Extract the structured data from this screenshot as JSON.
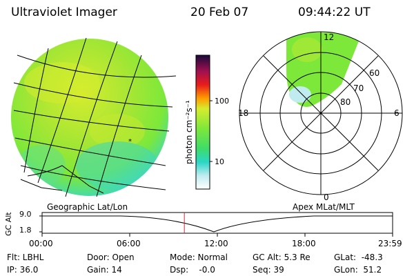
{
  "header": {
    "title": "Ultraviolet Imager",
    "date": "20 Feb 07",
    "time": "09:44:22 UT"
  },
  "colorbar": {
    "label": "photon cm⁻²s⁻¹",
    "ticks": [
      "100",
      "10"
    ],
    "scale": "log"
  },
  "polar": {
    "mlt_labels": {
      "top": "12",
      "left": "18",
      "right": "6",
      "bottom": "0"
    },
    "lat_labels": [
      "60",
      "70",
      "80"
    ]
  },
  "timeline": {
    "left_label": "Geographic Lat/Lon",
    "right_label": "Apex MLat/MLT",
    "y_label": "GC Alt",
    "y_ticks": [
      "9.0",
      "1.8"
    ],
    "x_ticks": [
      "00:00",
      "06:00",
      "12:00",
      "18:00",
      "23:59"
    ],
    "marker_time": "09:44",
    "marker_color": "#cc2a36"
  },
  "status": {
    "flt": "Flt: LBHL",
    "ip": "IP: 36.0",
    "door": "Door: Open",
    "gain": "Gain: 14",
    "mode": "Mode: Normal",
    "dsp": "Dsp:    -0.0",
    "gc_alt": "GC Alt: 5.3 Re",
    "seq": "Seq: 39",
    "glat": "GLat:  -48.3",
    "glon": "GLon:  51.2"
  },
  "colors": {
    "green": "#7de83a",
    "yellow": "#d6ec2e",
    "cyan": "#2bd6c8",
    "orange": "#ff9a00",
    "red": "#e81c1c",
    "purple": "#2a0a4a"
  }
}
